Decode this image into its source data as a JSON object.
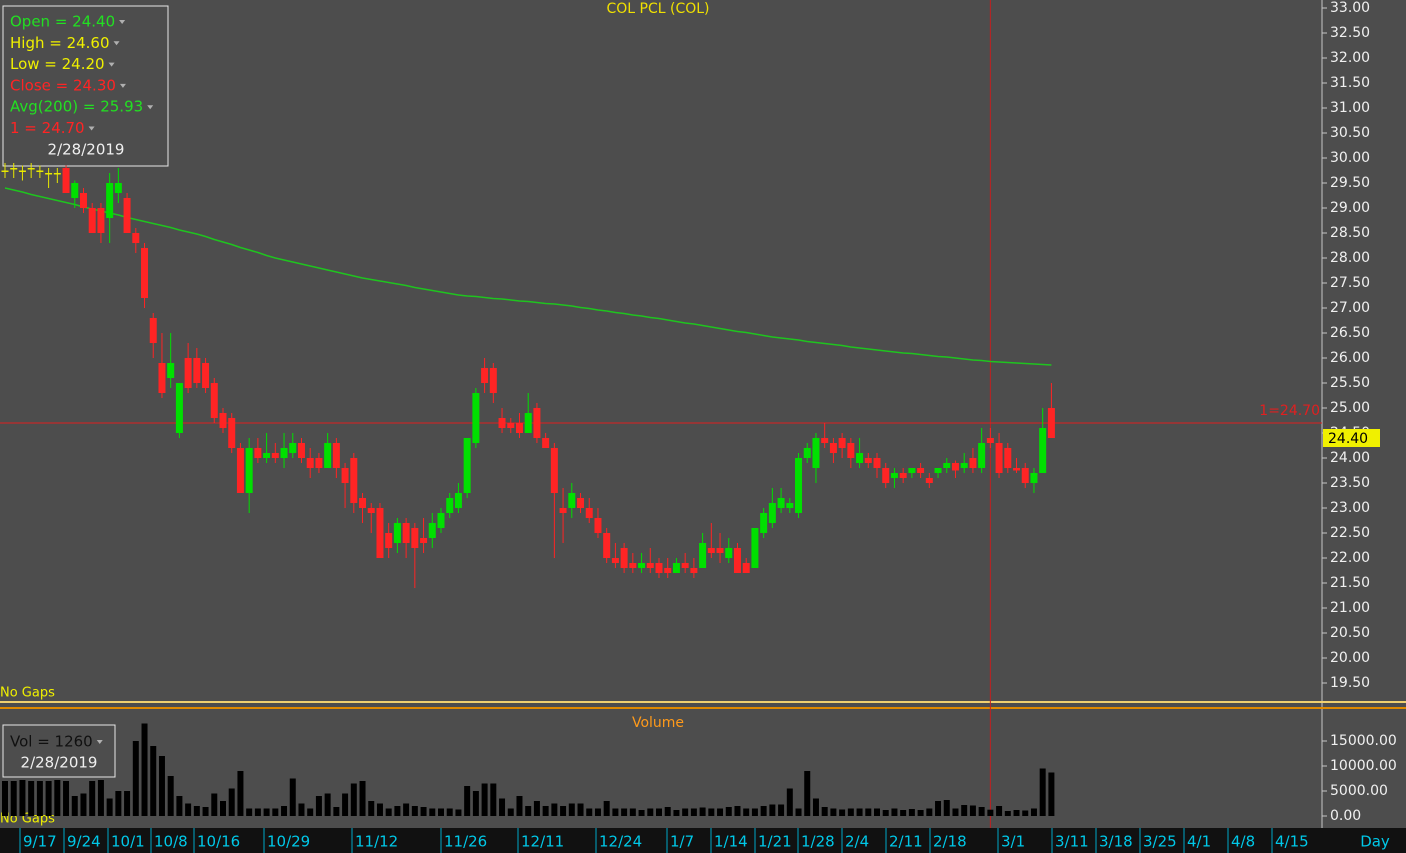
{
  "chart_data": {
    "type": "candlestick",
    "title": "COL PCL (COL)",
    "colors": {
      "up": "#00e000",
      "down": "#ff2424",
      "flat": "#e8e800"
    },
    "candles": [
      [
        29.75,
        29.9,
        29.6,
        29.75
      ],
      [
        29.8,
        29.9,
        29.6,
        29.8
      ],
      [
        29.75,
        29.85,
        29.55,
        29.75
      ],
      [
        29.8,
        29.9,
        29.6,
        29.8
      ],
      [
        29.75,
        29.85,
        29.6,
        29.75
      ],
      [
        29.7,
        29.8,
        29.4,
        29.7
      ],
      [
        29.7,
        29.8,
        29.5,
        29.7
      ],
      [
        29.8,
        29.85,
        29.3,
        29.3
      ],
      [
        29.2,
        29.55,
        29.0,
        29.5
      ],
      [
        29.3,
        29.4,
        28.9,
        29.0
      ],
      [
        29.0,
        29.1,
        28.5,
        28.5
      ],
      [
        29.0,
        29.1,
        28.3,
        28.5
      ],
      [
        28.8,
        29.7,
        28.3,
        29.5
      ],
      [
        29.3,
        29.8,
        29.1,
        29.5
      ],
      [
        29.2,
        29.3,
        28.5,
        28.5
      ],
      [
        28.5,
        28.6,
        28.1,
        28.3
      ],
      [
        28.2,
        28.3,
        27.0,
        27.2
      ],
      [
        26.8,
        26.9,
        26.0,
        26.3
      ],
      [
        25.9,
        26.5,
        25.2,
        25.3
      ],
      [
        25.6,
        26.5,
        25.4,
        25.9
      ],
      [
        24.5,
        25.5,
        24.4,
        25.5
      ],
      [
        26.0,
        26.3,
        25.3,
        25.4
      ],
      [
        26.0,
        26.2,
        25.4,
        25.5
      ],
      [
        25.9,
        26.0,
        25.3,
        25.4
      ],
      [
        25.5,
        25.6,
        24.7,
        24.8
      ],
      [
        24.9,
        25.0,
        24.5,
        24.6
      ],
      [
        24.8,
        24.9,
        24.1,
        24.2
      ],
      [
        24.2,
        24.3,
        23.3,
        23.3
      ],
      [
        23.3,
        24.4,
        22.9,
        24.2
      ],
      [
        24.2,
        24.4,
        23.9,
        24.0
      ],
      [
        24.0,
        24.5,
        23.9,
        24.1
      ],
      [
        24.1,
        24.3,
        23.9,
        24.0
      ],
      [
        24.0,
        24.5,
        23.8,
        24.2
      ],
      [
        24.1,
        24.5,
        24.0,
        24.3
      ],
      [
        24.3,
        24.4,
        23.9,
        24.0
      ],
      [
        24.0,
        24.2,
        23.6,
        23.8
      ],
      [
        24.0,
        24.1,
        23.7,
        23.8
      ],
      [
        23.8,
        24.5,
        23.8,
        24.3
      ],
      [
        24.3,
        24.4,
        23.6,
        23.8
      ],
      [
        23.8,
        23.9,
        23.0,
        23.5
      ],
      [
        24.0,
        24.1,
        22.9,
        23.1
      ],
      [
        23.2,
        23.3,
        22.7,
        23.0
      ],
      [
        23.0,
        23.1,
        22.5,
        22.9
      ],
      [
        23.0,
        23.1,
        22.0,
        22.0
      ],
      [
        22.5,
        22.7,
        22.0,
        22.2
      ],
      [
        22.3,
        22.8,
        22.1,
        22.7
      ],
      [
        22.7,
        22.8,
        22.0,
        22.3
      ],
      [
        22.6,
        22.7,
        21.4,
        22.2
      ],
      [
        22.4,
        22.8,
        22.1,
        22.3
      ],
      [
        22.4,
        22.9,
        22.2,
        22.7
      ],
      [
        22.6,
        23.0,
        22.5,
        22.9
      ],
      [
        22.9,
        23.3,
        22.8,
        23.2
      ],
      [
        23.0,
        23.5,
        22.9,
        23.3
      ],
      [
        23.3,
        24.4,
        23.2,
        24.4
      ],
      [
        24.3,
        25.4,
        24.2,
        25.3
      ],
      [
        25.8,
        26.0,
        25.3,
        25.5
      ],
      [
        25.8,
        25.9,
        25.1,
        25.3
      ],
      [
        24.8,
        25.0,
        24.5,
        24.6
      ],
      [
        24.7,
        24.8,
        24.5,
        24.6
      ],
      [
        24.7,
        24.9,
        24.4,
        24.5
      ],
      [
        24.5,
        25.3,
        24.5,
        24.9
      ],
      [
        25.0,
        25.1,
        24.3,
        24.4
      ],
      [
        24.4,
        24.5,
        24.2,
        24.2
      ],
      [
        24.2,
        24.3,
        22.0,
        23.3
      ],
      [
        23.0,
        23.4,
        22.3,
        22.9
      ],
      [
        23.0,
        23.5,
        22.8,
        23.3
      ],
      [
        23.2,
        23.3,
        22.9,
        23.0
      ],
      [
        23.0,
        23.2,
        22.7,
        22.8
      ],
      [
        22.8,
        23.0,
        22.4,
        22.5
      ],
      [
        22.5,
        22.6,
        21.9,
        22.0
      ],
      [
        22.0,
        22.3,
        21.8,
        21.9
      ],
      [
        22.2,
        22.3,
        21.7,
        21.8
      ],
      [
        21.9,
        22.1,
        21.7,
        21.8
      ],
      [
        21.8,
        22.1,
        21.7,
        21.9
      ],
      [
        21.9,
        22.2,
        21.7,
        21.8
      ],
      [
        21.9,
        22.0,
        21.6,
        21.7
      ],
      [
        21.8,
        22.0,
        21.6,
        21.7
      ],
      [
        21.7,
        22.0,
        21.7,
        21.9
      ],
      [
        21.9,
        22.1,
        21.7,
        21.8
      ],
      [
        21.8,
        22.0,
        21.6,
        21.7
      ],
      [
        21.8,
        22.5,
        21.8,
        22.3
      ],
      [
        22.2,
        22.7,
        22.0,
        22.1
      ],
      [
        22.2,
        22.5,
        21.9,
        22.1
      ],
      [
        22.0,
        22.4,
        21.9,
        22.2
      ],
      [
        22.2,
        22.3,
        21.7,
        21.7
      ],
      [
        21.9,
        22.0,
        21.7,
        21.7
      ],
      [
        21.8,
        22.6,
        21.8,
        22.6
      ],
      [
        22.5,
        23.0,
        22.4,
        22.9
      ],
      [
        22.7,
        23.4,
        22.6,
        23.1
      ],
      [
        23.0,
        23.4,
        22.9,
        23.2
      ],
      [
        23.0,
        23.2,
        22.9,
        23.1
      ],
      [
        22.9,
        24.1,
        22.8,
        24.0
      ],
      [
        24.0,
        24.3,
        23.9,
        24.2
      ],
      [
        23.8,
        24.5,
        23.5,
        24.4
      ],
      [
        24.4,
        24.7,
        24.2,
        24.3
      ],
      [
        24.3,
        24.4,
        23.9,
        24.1
      ],
      [
        24.4,
        24.5,
        24.0,
        24.2
      ],
      [
        24.3,
        24.4,
        23.8,
        24.0
      ],
      [
        23.9,
        24.4,
        23.8,
        24.1
      ],
      [
        24.0,
        24.1,
        23.8,
        23.9
      ],
      [
        24.0,
        24.1,
        23.6,
        23.8
      ],
      [
        23.8,
        23.9,
        23.4,
        23.5
      ],
      [
        23.6,
        23.8,
        23.4,
        23.7
      ],
      [
        23.7,
        23.8,
        23.5,
        23.6
      ],
      [
        23.7,
        23.8,
        23.6,
        23.8
      ],
      [
        23.8,
        23.9,
        23.6,
        23.7
      ],
      [
        23.6,
        23.7,
        23.4,
        23.5
      ],
      [
        23.7,
        23.8,
        23.6,
        23.8
      ],
      [
        23.8,
        24.0,
        23.7,
        23.9
      ],
      [
        23.9,
        23.95,
        23.6,
        23.75
      ],
      [
        23.8,
        24.1,
        23.7,
        23.9
      ],
      [
        24.0,
        24.2,
        23.7,
        23.8
      ],
      [
        23.8,
        24.6,
        23.7,
        24.3
      ],
      [
        24.4,
        24.6,
        24.2,
        24.3
      ],
      [
        24.3,
        24.5,
        23.6,
        23.7
      ],
      [
        24.2,
        24.3,
        23.7,
        23.8
      ],
      [
        23.8,
        24.0,
        23.7,
        23.75
      ],
      [
        23.8,
        23.9,
        23.4,
        23.5
      ],
      [
        23.5,
        23.8,
        23.3,
        23.7
      ],
      [
        23.7,
        25.0,
        23.7,
        24.6
      ],
      [
        25.0,
        25.5,
        24.4,
        24.4
      ]
    ],
    "ma": {
      "name": "Avg(200)",
      "color": "#1fc41f",
      "values": [
        29.4,
        29.36,
        29.32,
        29.27,
        29.23,
        29.19,
        29.15,
        29.11,
        29.07,
        29.02,
        28.98,
        28.94,
        28.9,
        28.86,
        28.81,
        28.77,
        28.73,
        28.69,
        28.65,
        28.61,
        28.56,
        28.52,
        28.48,
        28.43,
        28.37,
        28.32,
        28.27,
        28.21,
        28.16,
        28.11,
        28.05,
        28.0,
        27.96,
        27.92,
        27.88,
        27.84,
        27.8,
        27.76,
        27.72,
        27.68,
        27.64,
        27.6,
        27.57,
        27.54,
        27.51,
        27.48,
        27.45,
        27.41,
        27.38,
        27.35,
        27.32,
        27.29,
        27.26,
        27.24,
        27.23,
        27.21,
        27.19,
        27.18,
        27.16,
        27.14,
        27.13,
        27.11,
        27.09,
        27.08,
        27.06,
        27.04,
        27.01,
        26.99,
        26.96,
        26.94,
        26.91,
        26.89,
        26.86,
        26.84,
        26.81,
        26.79,
        26.76,
        26.73,
        26.7,
        26.68,
        26.65,
        26.62,
        26.59,
        26.56,
        26.53,
        26.51,
        26.48,
        26.45,
        26.42,
        26.4,
        26.38,
        26.36,
        26.33,
        26.31,
        26.29,
        26.27,
        26.25,
        26.22,
        26.2,
        26.18,
        26.16,
        26.14,
        26.12,
        26.1,
        26.09,
        26.07,
        26.05,
        26.03,
        26.02,
        26.0,
        25.98,
        25.96,
        25.95,
        25.93,
        25.92,
        25.91,
        25.9,
        25.89,
        25.88,
        25.87,
        25.86
      ]
    },
    "ylim": [
      19.16,
      33.16
    ],
    "yticks": [
      {
        "value": 19.5,
        "label": "19.50"
      },
      {
        "value": 20,
        "label": "20.00"
      },
      {
        "value": 20.5,
        "label": "20.50"
      },
      {
        "value": 21,
        "label": "21.00"
      },
      {
        "value": 21.5,
        "label": "21.50"
      },
      {
        "value": 22,
        "label": "22.00"
      },
      {
        "value": 22.5,
        "label": "22.50"
      },
      {
        "value": 23,
        "label": "23.00"
      },
      {
        "value": 23.5,
        "label": "23.50"
      },
      {
        "value": 24,
        "label": "24.00"
      },
      {
        "value": 24.5,
        "label": "24.50"
      },
      {
        "value": 25,
        "label": "25.00"
      },
      {
        "value": 25.5,
        "label": "25.50"
      },
      {
        "value": 26,
        "label": "26.00"
      },
      {
        "value": 26.5,
        "label": "26.50"
      },
      {
        "value": 27,
        "label": "27.00"
      },
      {
        "value": 27.5,
        "label": "27.50"
      },
      {
        "value": 28,
        "label": "28.00"
      },
      {
        "value": 28.5,
        "label": "28.50"
      },
      {
        "value": 29,
        "label": "29.00"
      },
      {
        "value": 29.5,
        "label": "29.50"
      },
      {
        "value": 30,
        "label": "30.00"
      },
      {
        "value": 30.5,
        "label": "30.50"
      },
      {
        "value": 31,
        "label": "31.00"
      },
      {
        "value": 31.5,
        "label": "31.50"
      },
      {
        "value": 32,
        "label": "32.00"
      },
      {
        "value": 32.5,
        "label": "32.50"
      },
      {
        "value": 33,
        "label": "33.00"
      }
    ],
    "hline": {
      "value": 24.7,
      "label": "1=24.70",
      "color": "#e02020"
    },
    "last_price": {
      "value": 24.4,
      "label": "24.40"
    },
    "info": {
      "lines": [
        {
          "text": "Open = 24.40",
          "color": "#22e022"
        },
        {
          "text": "High = 24.60",
          "color": "#f0f000"
        },
        {
          "text": "Low = 24.20",
          "color": "#f0f000"
        },
        {
          "text": "Close = 24.30",
          "color": "#ff2424"
        },
        {
          "text": "Avg(200) = 25.93",
          "color": "#22e022"
        },
        {
          "text": "1 = 24.70",
          "color": "#ff2424"
        }
      ],
      "date": "2/28/2019"
    },
    "no_gaps": "No Gaps",
    "volume": {
      "title": "Volume",
      "values": [
        7000,
        7000,
        7200,
        7000,
        7000,
        7000,
        7200,
        7000,
        4000,
        4500,
        7000,
        7200,
        3500,
        5000,
        5000,
        15000,
        18500,
        14000,
        12000,
        8000,
        4000,
        2500,
        2000,
        1800,
        4500,
        3000,
        5500,
        9000,
        1500,
        1500,
        1500,
        1500,
        2000,
        7500,
        2500,
        1500,
        4000,
        4500,
        1800,
        4500,
        6500,
        7000,
        3000,
        2500,
        1500,
        2000,
        2500,
        2000,
        1800,
        1500,
        1500,
        1500,
        1300,
        6000,
        5000,
        6500,
        6500,
        3500,
        1500,
        4000,
        2000,
        3000,
        2000,
        2500,
        2000,
        2500,
        2500,
        1500,
        1500,
        3000,
        1500,
        1500,
        1500,
        1200,
        1500,
        1500,
        1800,
        1200,
        1500,
        1500,
        1700,
        1500,
        1500,
        1800,
        2000,
        1500,
        1500,
        2000,
        2300,
        2300,
        5500,
        1500,
        9000,
        3500,
        1800,
        1500,
        1300,
        1500,
        1500,
        1500,
        1500,
        1200,
        1500,
        1200,
        1400,
        1200,
        1500,
        3000,
        3200,
        1500,
        2200,
        2100,
        1800,
        1260,
        2000,
        1000,
        1200,
        1100,
        1500,
        9500,
        8700
      ],
      "ylim": [
        -2400,
        20800
      ],
      "yticks": [
        {
          "value": 0,
          "label": "0.00"
        },
        {
          "value": 5000,
          "label": "5000.00"
        },
        {
          "value": 10000,
          "label": "10000.00"
        },
        {
          "value": 15000,
          "label": "15000.00"
        }
      ],
      "info": {
        "text": "Vol = 1260",
        "date": "2/28/2019"
      }
    },
    "xlabels": [
      "9/17",
      "9/24",
      "10/1",
      "10/8",
      "10/16",
      "10/29",
      "11/12",
      "11/26",
      "12/11",
      "12/24",
      "1/7",
      "1/14",
      "1/21",
      "1/28",
      "2/4",
      "2/11",
      "2/18",
      "3/1",
      "3/11",
      "3/18",
      "3/25",
      "4/1",
      "4/8",
      "4/15"
    ],
    "x_unit": "Day"
  }
}
